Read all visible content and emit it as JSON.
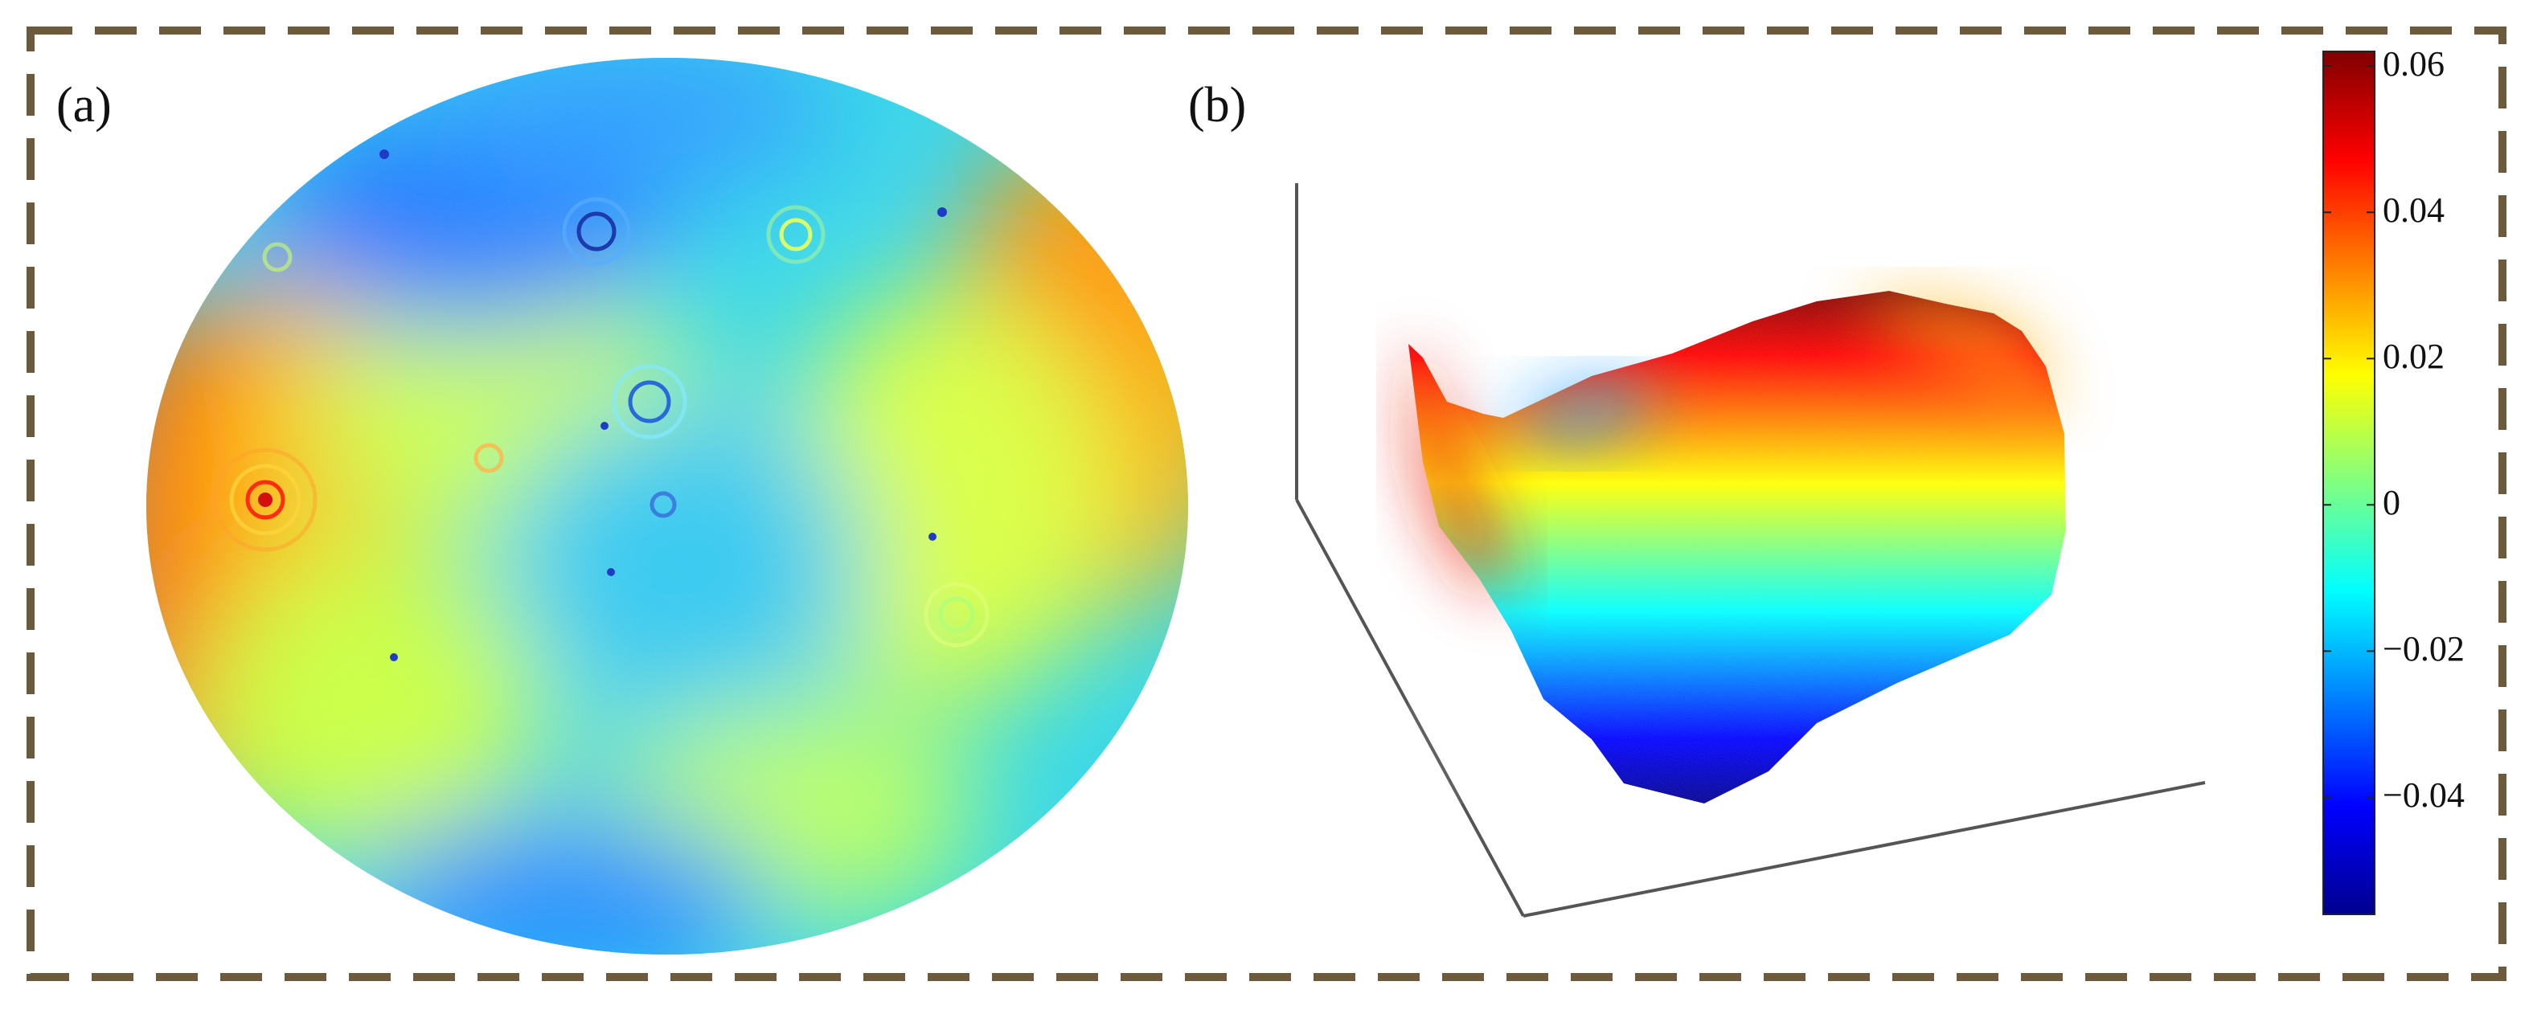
{
  "figure": {
    "frame_color": "#6b5a3c",
    "panels": [
      {
        "id": "a",
        "label": "(a)",
        "view": "2d-surface-map"
      },
      {
        "id": "b",
        "label": "(b)",
        "view": "3d-surface"
      }
    ]
  },
  "chart_data": {
    "type": "heatmap",
    "colormap": "jet",
    "colormap_stops": [
      "#00008f",
      "#0000ff",
      "#0080ff",
      "#00ffff",
      "#80ff80",
      "#ffff00",
      "#ff8000",
      "#ff0000",
      "#800000"
    ],
    "colorbar": {
      "range": [
        -0.056,
        0.062
      ],
      "ticks": [
        {
          "value": 0.06,
          "label": "0.06"
        },
        {
          "value": 0.04,
          "label": "0.04"
        },
        {
          "value": 0.02,
          "label": "0.02"
        },
        {
          "value": 0,
          "label": "0"
        },
        {
          "value": -0.02,
          "label": "−0.02"
        },
        {
          "value": -0.04,
          "label": "−0.04"
        }
      ]
    }
  }
}
